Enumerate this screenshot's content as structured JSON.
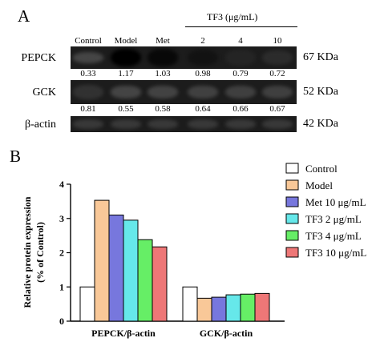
{
  "panel_a": {
    "letter": "A",
    "treatment_header": "TF3 (μg/mL)",
    "lanes": [
      "Control",
      "Model",
      "Met",
      "2",
      "4",
      "10"
    ],
    "rows": [
      {
        "label": "PEPCK",
        "kda": "67 KDa",
        "quant": [
          "0.33",
          "1.17",
          "1.03",
          "0.98",
          "0.79",
          "0.72"
        ],
        "intensity": [
          0.33,
          1.0,
          0.95,
          0.88,
          0.75,
          0.68
        ]
      },
      {
        "label": "GCK",
        "kda": "52 KDa",
        "quant": [
          "0.81",
          "0.55",
          "0.58",
          "0.64",
          "0.66",
          "0.67"
        ],
        "intensity": [
          0.62,
          0.35,
          0.38,
          0.42,
          0.44,
          0.45
        ]
      },
      {
        "label": "β-actin",
        "kda": "42 KDa",
        "quant": [],
        "intensity": [
          0.55,
          0.55,
          0.55,
          0.55,
          0.55,
          0.55
        ]
      }
    ]
  },
  "panel_b": {
    "letter": "B",
    "chart_data": {
      "type": "bar",
      "categories": [
        "PEPCK/β-actin",
        "GCK/β-actin"
      ],
      "series": [
        {
          "name": "Control",
          "color": "#ffffff",
          "values": [
            1.0,
            1.0
          ]
        },
        {
          "name": "Model",
          "color": "#f9c898",
          "values": [
            3.53,
            0.67
          ]
        },
        {
          "name": "Met 10 μg/mL",
          "color": "#7777dd",
          "values": [
            3.1,
            0.7
          ]
        },
        {
          "name": "TF3 2 μg/mL",
          "color": "#66e8ea",
          "values": [
            2.95,
            0.77
          ]
        },
        {
          "name": "TF3 4 μg/mL",
          "color": "#66ee66",
          "values": [
            2.38,
            0.79
          ]
        },
        {
          "name": "TF3 10 μg/mL",
          "color": "#ee7777",
          "values": [
            2.17,
            0.81
          ]
        }
      ],
      "ylabel": "Relative protein expression (% of Control)",
      "ylim": [
        0,
        4
      ],
      "yticks": [
        "0",
        "1",
        "2",
        "3",
        "4"
      ],
      "legend": "right"
    }
  }
}
